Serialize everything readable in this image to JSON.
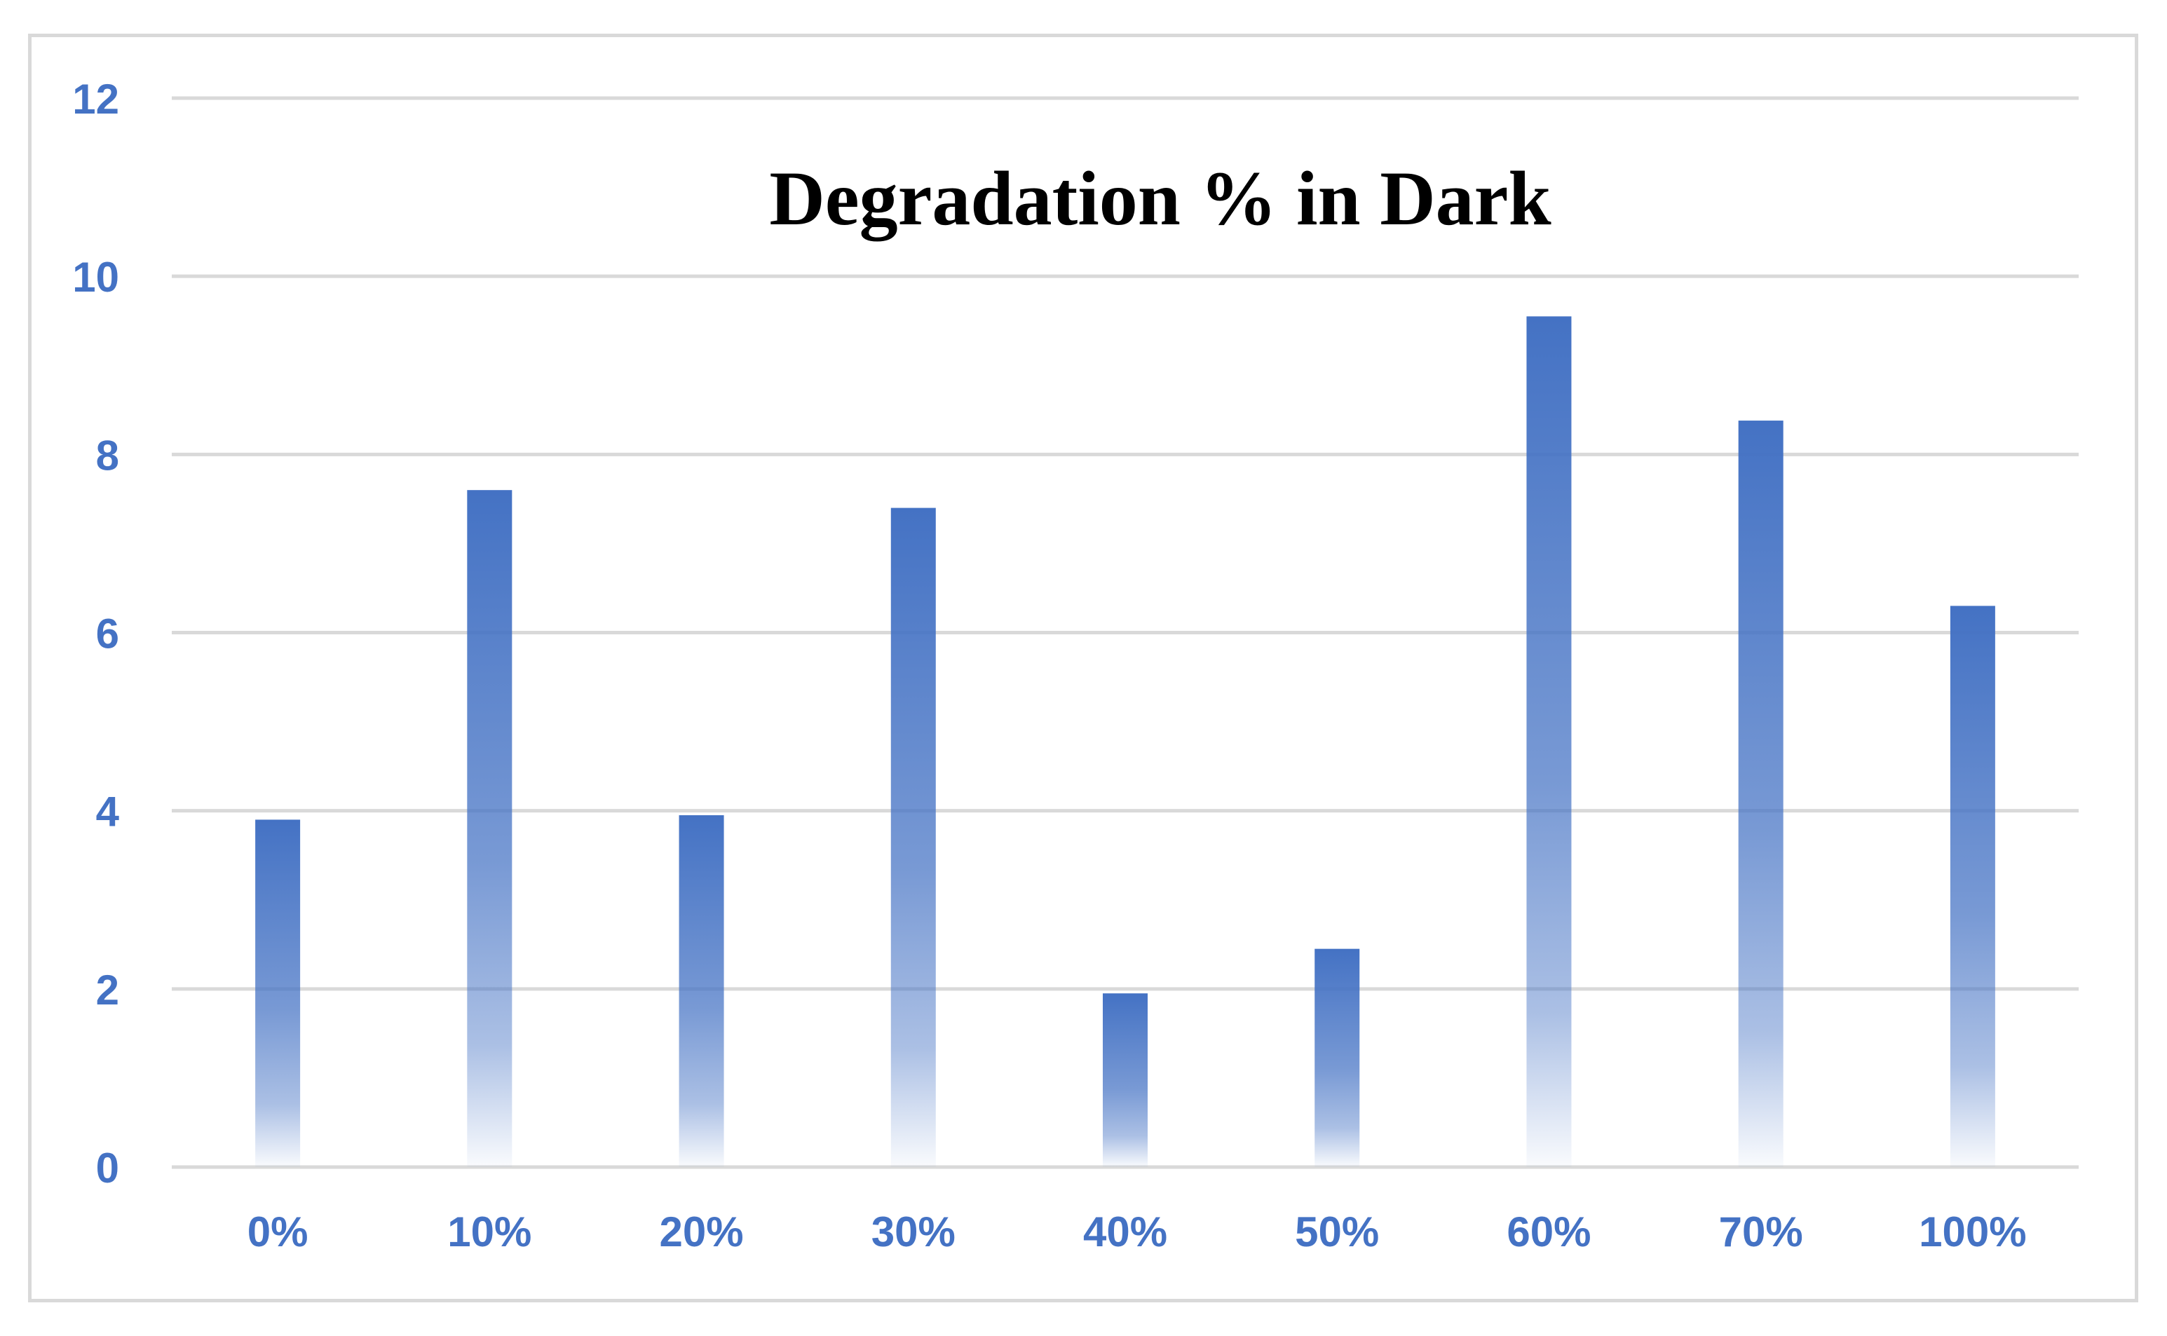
{
  "chart_data": {
    "type": "bar",
    "title": "Degradation % in Dark",
    "xlabel": "",
    "ylabel": "",
    "categories": [
      "0%",
      "10%",
      "20%",
      "30%",
      "40%",
      "50%",
      "60%",
      "70%",
      "100%"
    ],
    "values": [
      3.9,
      7.6,
      3.95,
      7.4,
      1.95,
      2.45,
      9.55,
      8.38,
      6.3
    ],
    "ylim": [
      0,
      12
    ],
    "yticks": [
      "0",
      "2",
      "4",
      "6",
      "8",
      "10",
      "12"
    ],
    "grid": true,
    "legend": "none"
  },
  "colors": {
    "bar": "#4472c4",
    "tick_label": "#4472c4",
    "title": "#000000",
    "gridline": "#d9d9d9",
    "frame": "#d9d9d9"
  }
}
